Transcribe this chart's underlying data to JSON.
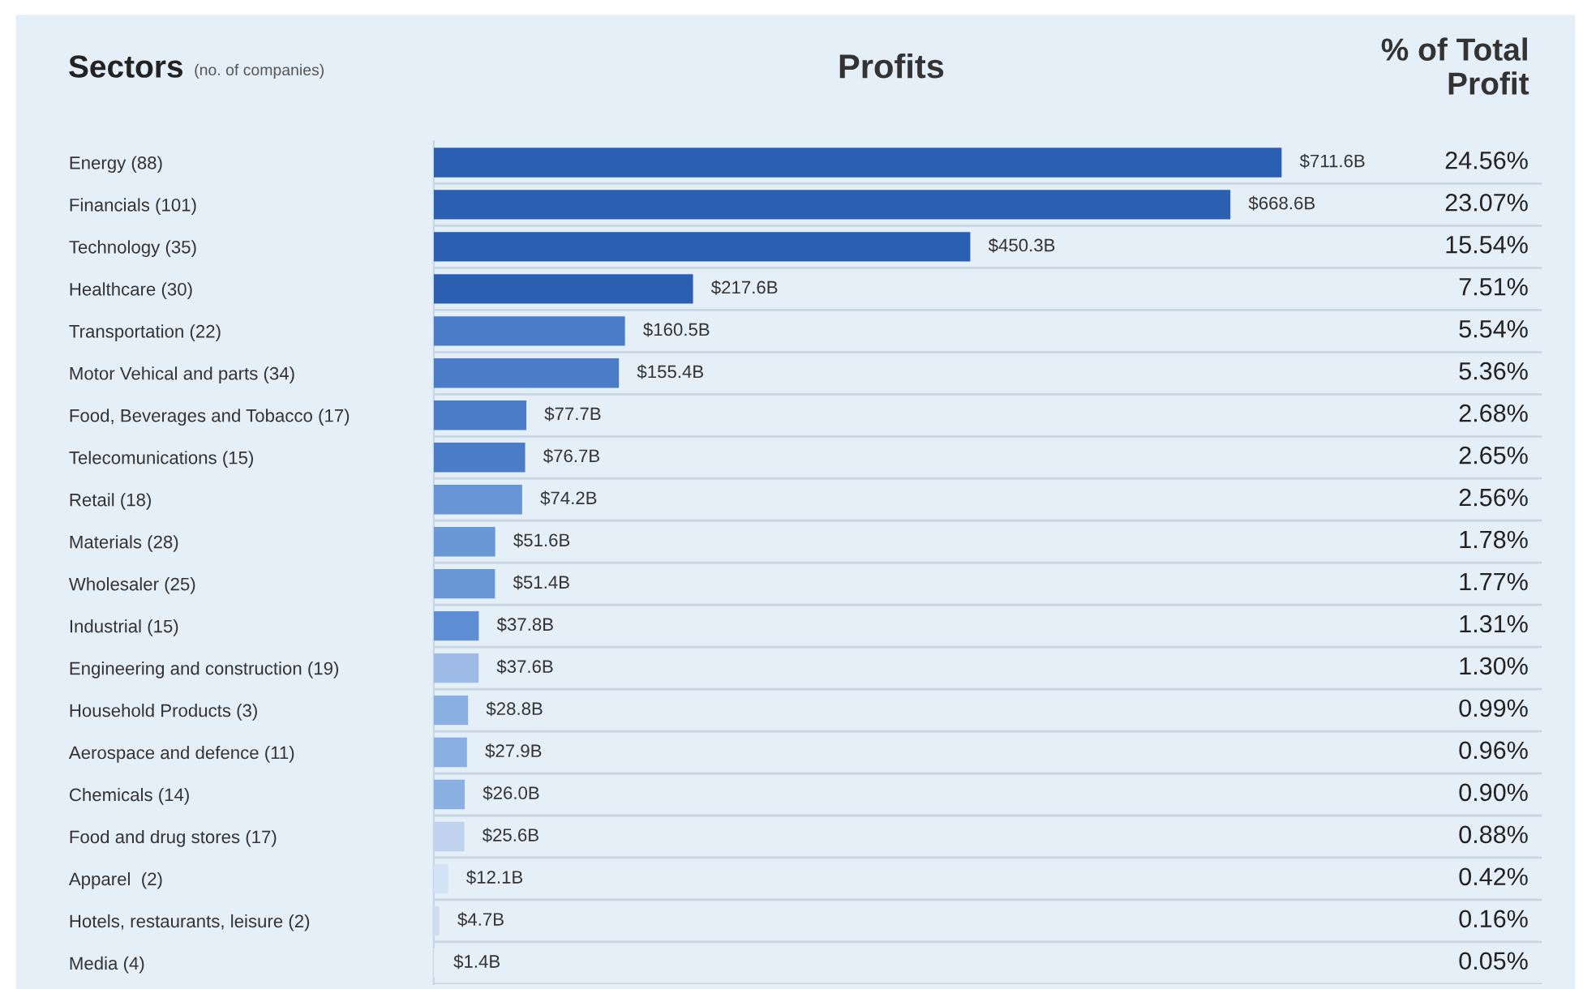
{
  "chart_data": {
    "type": "bar",
    "orientation": "horizontal",
    "title": "Profits",
    "ylabel": "Sectors",
    "subtitle": "(no. of companies)",
    "categories": [
      "Energy (88)",
      "Financials (101)",
      "Technology (35)",
      "Healthcare (30)",
      "Transportation (22)",
      "Motor Vehical and parts (34)",
      "Food, Beverages and Tobacco (17)",
      "Telecomunications (15)",
      "Retail (18)",
      "Materials (28)",
      "Wholesaler (25)",
      "Industrial (15)",
      "Engineering and construction (19)",
      "Household Products (3)",
      "Aerospace and defence (11)",
      "Chemicals (14)",
      "Food and drug stores (17)",
      "Apparel  (2)",
      "Hotels, restaurants, leisure (2)",
      "Media (4)"
    ],
    "values": [
      711.6,
      668.6,
      450.3,
      217.6,
      160.5,
      155.4,
      77.7,
      76.7,
      74.2,
      51.6,
      51.4,
      37.8,
      37.6,
      28.8,
      27.9,
      26.0,
      25.6,
      12.1,
      4.7,
      1.4
    ],
    "value_labels": [
      "$711.6B",
      "$668.6B",
      "$450.3B",
      "$217.6B",
      "$160.5B",
      "$155.4B",
      "$77.7B",
      "$76.7B",
      "$74.2B",
      "$51.6B",
      "$51.4B",
      "$37.8B",
      "$37.6B",
      "$28.8B",
      "$27.9B",
      "$26.0B",
      "$25.6B",
      "$12.1B",
      "$4.7B",
      "$1.4B"
    ],
    "colors": [
      "#2a5fb2",
      "#2a5fb2",
      "#2a5fb2",
      "#2a5fb2",
      "#4a7cc8",
      "#4a7cc8",
      "#4a7cc8",
      "#4a7cc8",
      "#6694d4",
      "#6a97d6",
      "#6a97d6",
      "#5e8fd4",
      "#9dbbe6",
      "#8ab0e2",
      "#8ab0e2",
      "#8ab0e2",
      "#c0d2ee",
      "#d4e2f5",
      "#d0dcf0",
      "#e4eef8"
    ],
    "xlim": [
      0,
      930
    ],
    "grid": "y",
    "annotations": [
      "% of Total\nProfit",
      "24.56%",
      "23.07%",
      "15.54%",
      "7.51%",
      "5.54%",
      "5.36%",
      "2.68%",
      "2.65%",
      "2.56%",
      "1.78%",
      "1.77%",
      "1.31%",
      "1.30%",
      "0.99%",
      "0.96%",
      "0.90%",
      "0.88%",
      "0.42%",
      "0.16%",
      "0.05%"
    ]
  }
}
